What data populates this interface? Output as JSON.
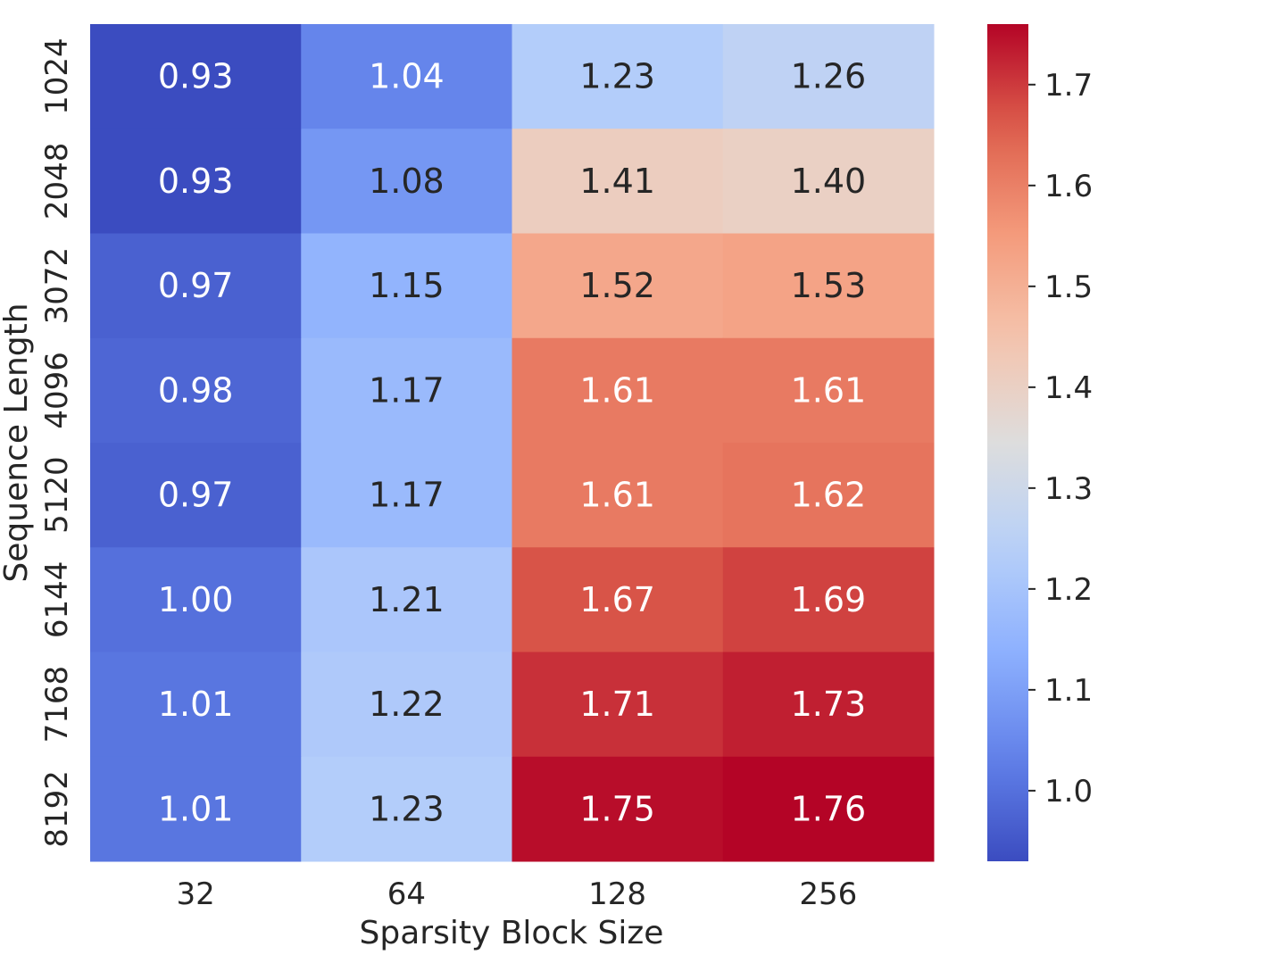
{
  "chart_data": {
    "type": "heatmap",
    "title": "",
    "xlabel": "Sparsity Block Size",
    "ylabel": "Sequence Length",
    "x_categories": [
      "32",
      "64",
      "128",
      "256"
    ],
    "y_categories": [
      "1024",
      "2048",
      "3072",
      "4096",
      "5120",
      "6144",
      "7168",
      "8192"
    ],
    "values": [
      [
        0.93,
        1.04,
        1.23,
        1.26
      ],
      [
        0.93,
        1.08,
        1.41,
        1.4
      ],
      [
        0.97,
        1.15,
        1.52,
        1.53
      ],
      [
        0.98,
        1.17,
        1.61,
        1.61
      ],
      [
        0.97,
        1.17,
        1.61,
        1.62
      ],
      [
        1.0,
        1.21,
        1.67,
        1.69
      ],
      [
        1.01,
        1.22,
        1.71,
        1.73
      ],
      [
        1.01,
        1.23,
        1.75,
        1.76
      ]
    ],
    "value_labels": [
      [
        "0.93",
        "1.04",
        "1.23",
        "1.26"
      ],
      [
        "0.93",
        "1.08",
        "1.41",
        "1.40"
      ],
      [
        "0.97",
        "1.15",
        "1.52",
        "1.53"
      ],
      [
        "0.98",
        "1.17",
        "1.61",
        "1.61"
      ],
      [
        "0.97",
        "1.17",
        "1.61",
        "1.62"
      ],
      [
        "1.00",
        "1.21",
        "1.67",
        "1.69"
      ],
      [
        "1.01",
        "1.22",
        "1.71",
        "1.73"
      ],
      [
        "1.01",
        "1.23",
        "1.75",
        "1.76"
      ]
    ],
    "colormap": "coolwarm",
    "colorbar": {
      "range": [
        0.93,
        1.76
      ],
      "ticks": [
        1.0,
        1.1,
        1.2,
        1.3,
        1.4,
        1.5,
        1.6,
        1.7
      ],
      "tick_labels": [
        "1.0",
        "1.1",
        "1.2",
        "1.3",
        "1.4",
        "1.5",
        "1.6",
        "1.7"
      ]
    },
    "grid": false,
    "legend": "colorbar-right"
  }
}
